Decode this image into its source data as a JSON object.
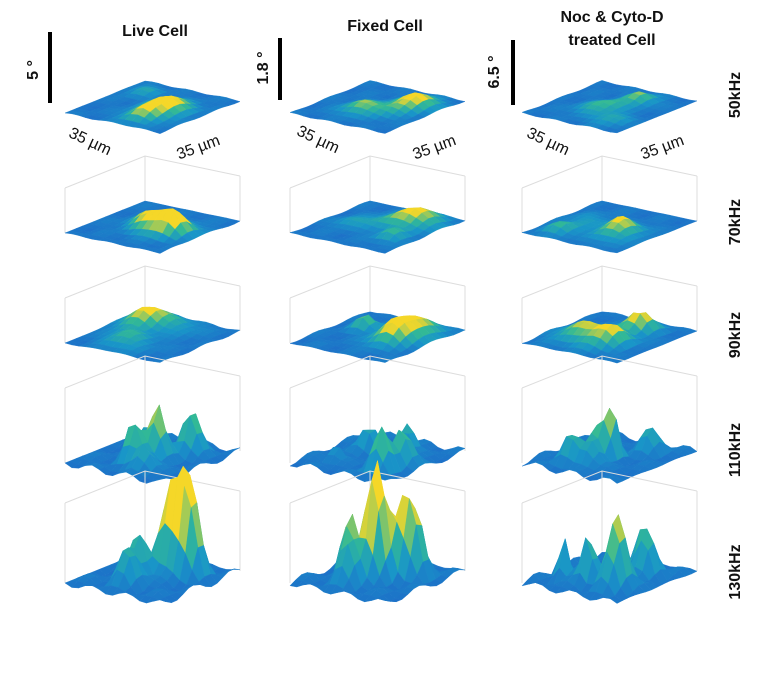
{
  "columns": [
    {
      "title": [
        "Live Cell"
      ],
      "scale": "5 °",
      "x_label": "35 µm",
      "y_label": "35 µm"
    },
    {
      "title": [
        "Fixed Cell"
      ],
      "scale": "1.8 °",
      "x_label": "35 µm",
      "y_label": "35 µm"
    },
    {
      "title": [
        "Noc & Cyto-D",
        "treated Cell"
      ],
      "scale": "6.5 °",
      "x_label": "35 µm",
      "y_label": "35 µm"
    }
  ],
  "rows": [
    "50kHz",
    "70kHz",
    "90kHz",
    "110kHz",
    "130kHz"
  ]
}
